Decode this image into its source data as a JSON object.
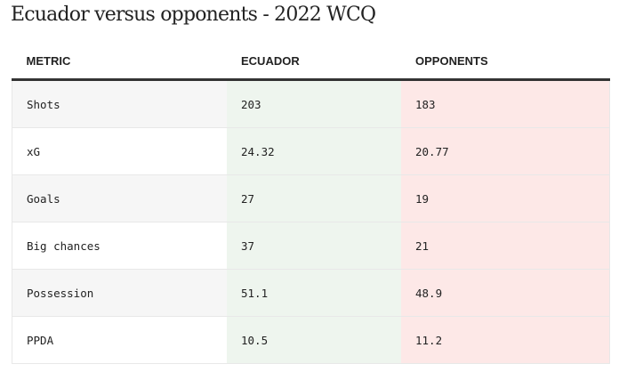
{
  "title": "Ecuador versus opponents - 2022 WCQ",
  "headers": [
    "METRIC",
    "ECUADOR",
    "OPPONENTS"
  ],
  "rows": [
    {
      "metric": "Shots",
      "ecuador": "203",
      "opponents": "183"
    },
    {
      "metric": "xG",
      "ecuador": "24.32",
      "opponents": "20.77"
    },
    {
      "metric": "Goals",
      "ecuador": "27",
      "opponents": "19"
    },
    {
      "metric": "Big chances",
      "ecuador": "37",
      "opponents": "21"
    },
    {
      "metric": "Possession",
      "ecuador": "51.1",
      "opponents": "48.9"
    },
    {
      "metric": "PPDA",
      "ecuador": "10.5",
      "opponents": "11.2"
    }
  ],
  "colors": {
    "ecuador_bg": "#eef5ee",
    "opponents_bg": "#fde8e7"
  }
}
